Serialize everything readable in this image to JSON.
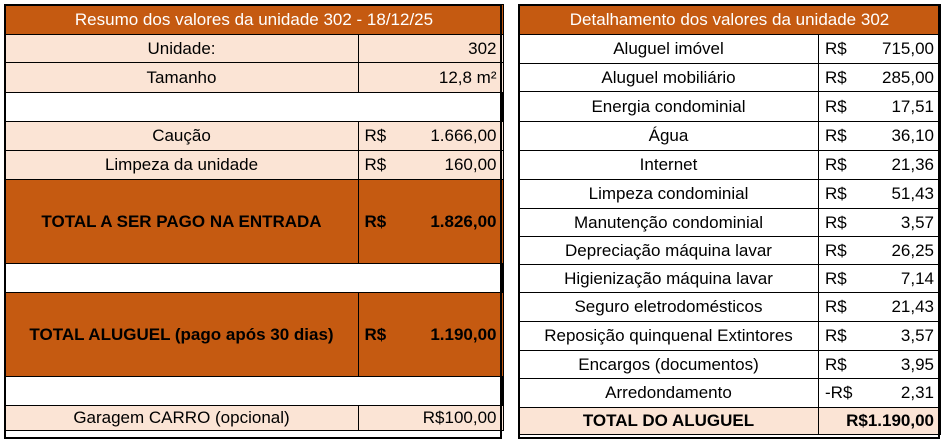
{
  "left": {
    "title": "Resumo dos valores da unidade 302 - 18/12/25",
    "unidade_label": "Unidade:",
    "unidade_value": "302",
    "tamanho_label": "Tamanho",
    "tamanho_value": "12,8 m²",
    "caucao_label": "Caução",
    "caucao_currency": "R$",
    "caucao_value": "1.666,00",
    "limpeza_label": "Limpeza da unidade",
    "limpeza_currency": "R$",
    "limpeza_value": "160,00",
    "total_entrada_label": "TOTAL A SER PAGO NA ENTRADA",
    "total_entrada_currency": "R$",
    "total_entrada_value": "1.826,00",
    "total_aluguel_label": "TOTAL ALUGUEL (pago após 30 dias)",
    "total_aluguel_currency": "R$",
    "total_aluguel_value": "1.190,00",
    "garagem_label": "Garagem CARRO (opcional)",
    "garagem_value": "R$100,00"
  },
  "right": {
    "title": "Detalhamento dos valores da unidade 302",
    "items": [
      {
        "label": "Aluguel imóvel",
        "currency": "R$",
        "value": "715,00"
      },
      {
        "label": "Aluguel mobiliário",
        "currency": "R$",
        "value": "285,00"
      },
      {
        "label": "Energia condominial",
        "currency": "R$",
        "value": "17,51"
      },
      {
        "label": "Água",
        "currency": "R$",
        "value": "36,10"
      },
      {
        "label": "Internet",
        "currency": "R$",
        "value": "21,36"
      },
      {
        "label": "Limpeza condominial",
        "currency": "R$",
        "value": "51,43"
      },
      {
        "label": "Manutenção condominial",
        "currency": "R$",
        "value": "3,57"
      },
      {
        "label": "Depreciação máquina lavar",
        "currency": "R$",
        "value": "26,25"
      },
      {
        "label": "Higienização máquina lavar",
        "currency": "R$",
        "value": "7,14"
      },
      {
        "label": "Seguro eletrodomésticos",
        "currency": "R$",
        "value": "21,43"
      },
      {
        "label": "Reposição quinquenal Extintores",
        "currency": "R$",
        "value": "3,57"
      },
      {
        "label": "Encargos (documentos)",
        "currency": "R$",
        "value": "3,95"
      },
      {
        "label": "Arredondamento",
        "currency": "-R$",
        "value": "2,31"
      }
    ],
    "total_label": "TOTAL DO ALUGUEL",
    "total_value": "R$1.190,00"
  }
}
